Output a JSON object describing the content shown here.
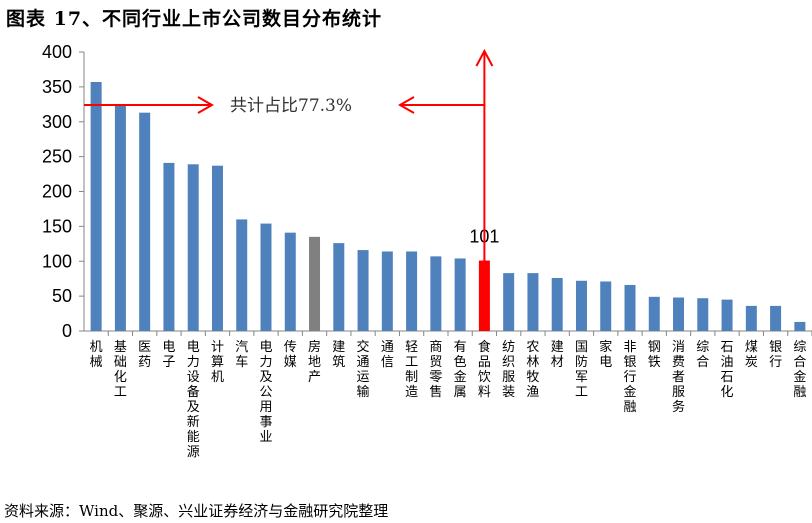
{
  "title": "图表 17、不同行业上市公司数目分布统计",
  "source": "资料来源：Wind、聚源、兴业证券经济与金融研究院整理",
  "annotation": {
    "text": "共计占比77.3%",
    "highlight_label": "101",
    "arrow_color": "#ff0000"
  },
  "colors": {
    "bar": "#4f81bd",
    "highlight": "#ff0000",
    "gray": "#808080",
    "axis": "#868686"
  },
  "chart_data": {
    "type": "bar",
    "title": "图表 17、不同行业上市公司数目分布统计",
    "xlabel": "",
    "ylabel": "",
    "ylim": [
      0,
      400
    ],
    "yticks": [
      0,
      50,
      100,
      150,
      200,
      250,
      300,
      350,
      400
    ],
    "grid": false,
    "legend": null,
    "categories": [
      "机械",
      "基础化工",
      "医药",
      "电子",
      "电力设备及新能源",
      "计算机",
      "汽车",
      "电力及公用事业",
      "传媒",
      "房地产",
      "建筑",
      "交通运输",
      "通信",
      "轻工制造",
      "商贸零售",
      "有色金属",
      "食品饮料",
      "纺织服装",
      "农林牧渔",
      "建材",
      "国防军工",
      "家电",
      "非银行金融",
      "钢铁",
      "消费者服务",
      "综合",
      "石油石化",
      "煤炭",
      "银行",
      "综合金融"
    ],
    "values": [
      357,
      325,
      313,
      241,
      239,
      237,
      160,
      154,
      141,
      135,
      126,
      116,
      114,
      114,
      107,
      104,
      101,
      83,
      83,
      76,
      72,
      71,
      66,
      49,
      48,
      47,
      45,
      36,
      36,
      13
    ],
    "bar_colors": [
      "blue",
      "blue",
      "blue",
      "blue",
      "blue",
      "blue",
      "blue",
      "blue",
      "blue",
      "gray",
      "blue",
      "blue",
      "blue",
      "blue",
      "blue",
      "blue",
      "red",
      "blue",
      "blue",
      "blue",
      "blue",
      "blue",
      "blue",
      "blue",
      "blue",
      "blue",
      "blue",
      "blue",
      "blue",
      "blue"
    ],
    "annotations": [
      {
        "text": "共计占比77.3%",
        "type": "bracket-arrows",
        "span": [
          "机械",
          "食品饮料"
        ]
      },
      {
        "text": "101",
        "type": "data-label",
        "category": "食品饮料"
      }
    ]
  }
}
